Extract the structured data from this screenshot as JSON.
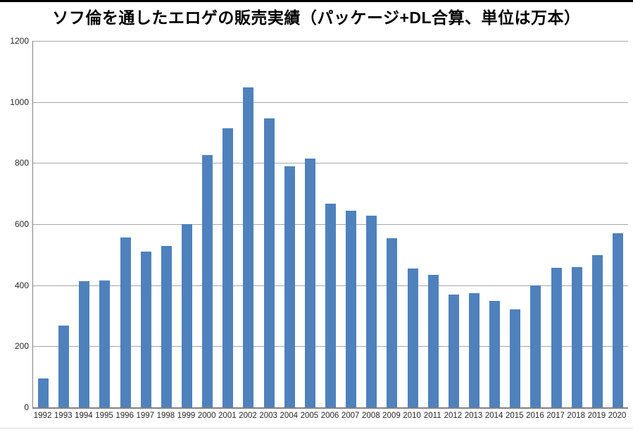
{
  "window": {
    "top_border_color": "#000000",
    "bottom_divider_color": "#d9d9d9",
    "background_color": "#ffffff"
  },
  "chart_data": {
    "type": "bar",
    "title": "ソフ倫を通したエロゲの販売実績（パッケージ+DL合算、単位は万本）",
    "xlabel": "",
    "ylabel": "",
    "categories": [
      "1992",
      "1993",
      "1994",
      "1995",
      "1996",
      "1997",
      "1998",
      "1999",
      "2000",
      "2001",
      "2002",
      "2003",
      "2004",
      "2005",
      "2006",
      "2007",
      "2008",
      "2009",
      "2010",
      "2011",
      "2012",
      "2013",
      "2014",
      "2015",
      "2016",
      "2017",
      "2018",
      "2019",
      "2020"
    ],
    "values": [
      95,
      267,
      413,
      416,
      556,
      511,
      528,
      600,
      826,
      914,
      1047,
      946,
      789,
      815,
      668,
      644,
      627,
      555,
      455,
      435,
      370,
      375,
      348,
      322,
      400,
      458,
      460,
      498,
      570
    ],
    "ylim": [
      0,
      1200
    ],
    "yticks": [
      0,
      200,
      400,
      600,
      800,
      1000,
      1200
    ],
    "grid": true,
    "legend_position": "none",
    "bar_color": "#4F81BD",
    "gridline_color": "#A6A6A6",
    "axis_color": "#808080",
    "tick_label_color": "#262626",
    "title_color": "#000000"
  }
}
